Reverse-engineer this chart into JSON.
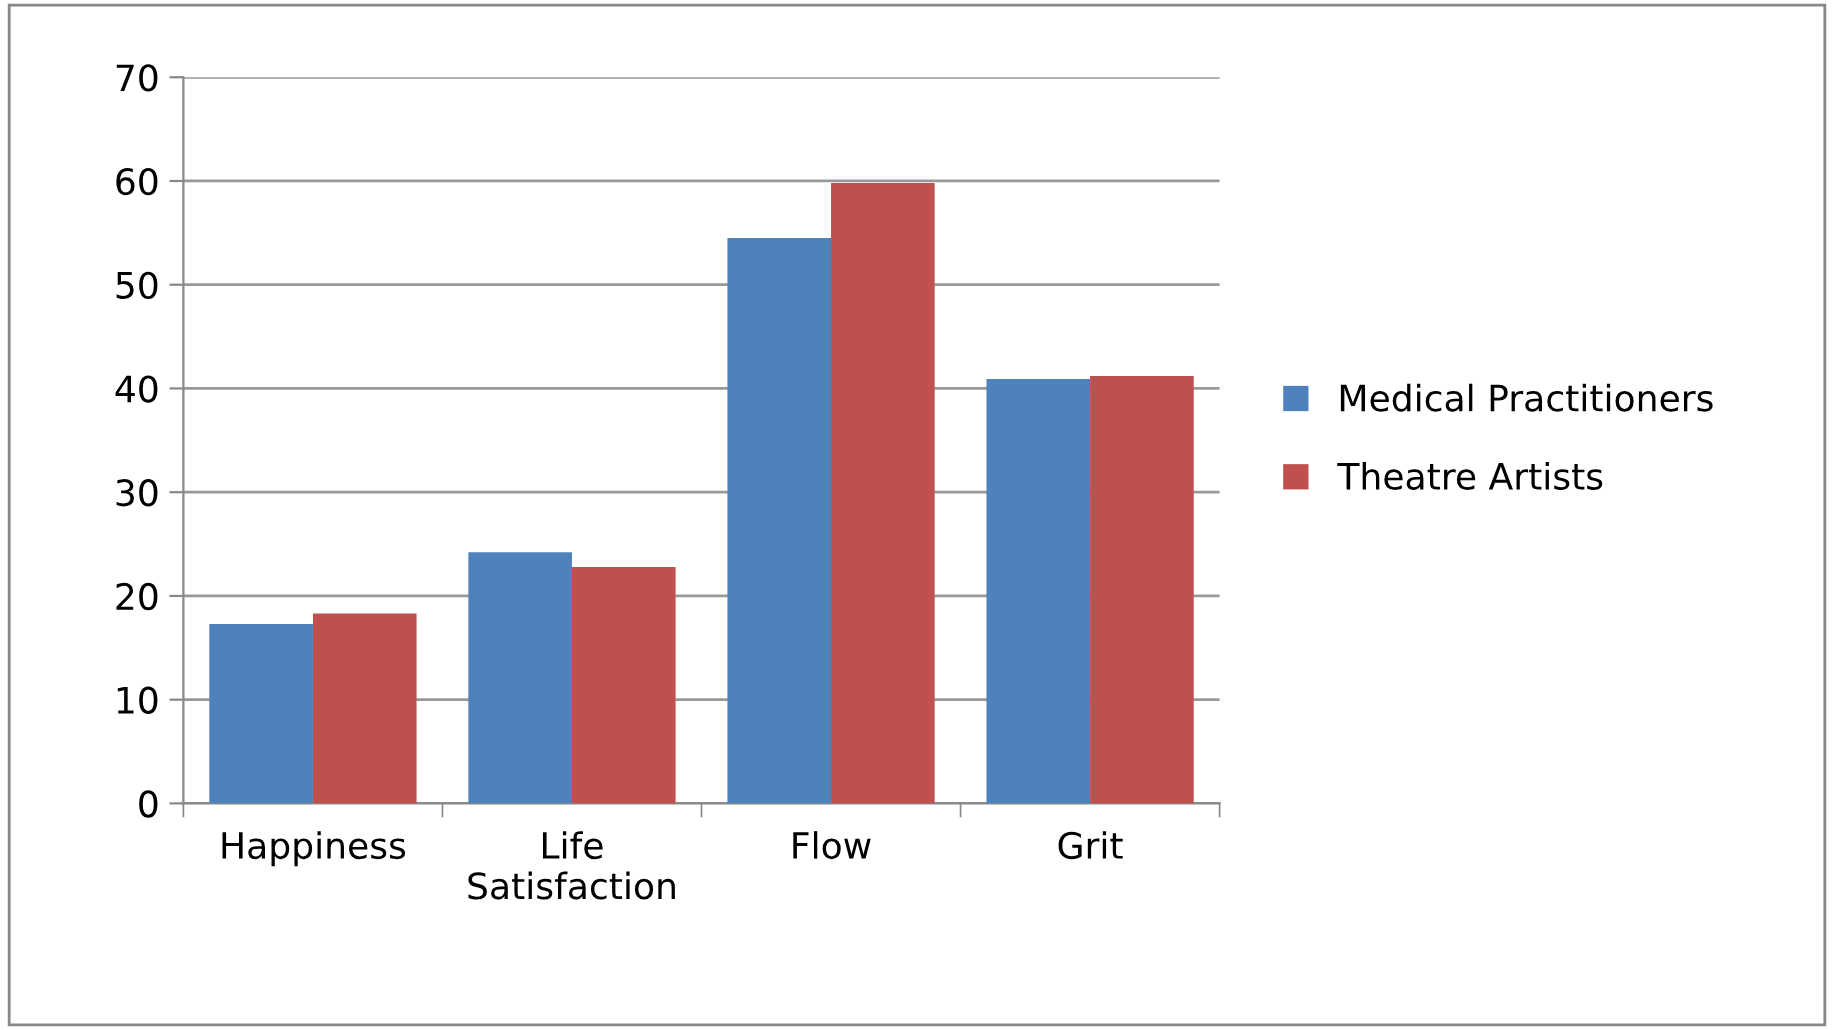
{
  "chart_data": {
    "type": "bar",
    "categories": [
      "Happiness",
      "Life\nSatisfaction",
      "Flow",
      "Grit"
    ],
    "series": [
      {
        "name": "Medical Practitioners",
        "color": "#4f81bd",
        "values": [
          17.3,
          24.2,
          54.5,
          40.9
        ]
      },
      {
        "name": "Theatre Artists",
        "color": "#c0504d",
        "values": [
          18.3,
          22.8,
          59.8,
          41.2
        ]
      }
    ],
    "ylim": [
      0,
      70
    ],
    "yticks": [
      0,
      10,
      20,
      30,
      40,
      50,
      60,
      70
    ],
    "grid": "y",
    "legend": "right"
  }
}
